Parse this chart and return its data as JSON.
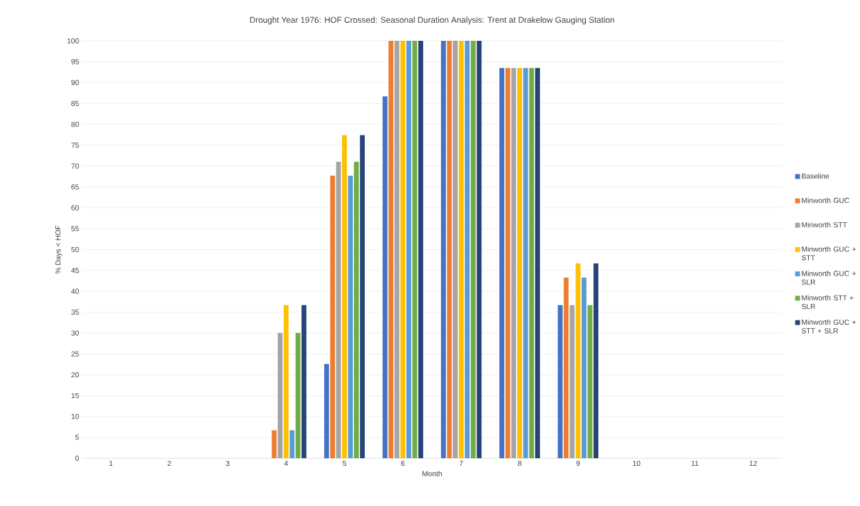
{
  "chart_data": {
    "type": "bar",
    "title": "Drought Year 1976: HOF Crossed: Seasonal Duration Analysis: Trent at Drakelow Gauging Station",
    "xlabel": "Month",
    "ylabel": "% Days < HOF",
    "categories": [
      "1",
      "2",
      "3",
      "4",
      "5",
      "6",
      "7",
      "8",
      "9",
      "10",
      "11",
      "12"
    ],
    "series": [
      {
        "name": "Baseline",
        "color": "#4472c4",
        "values": [
          0,
          0,
          0,
          0,
          22.6,
          86.7,
          100,
          93.5,
          36.7,
          0,
          0,
          0
        ]
      },
      {
        "name": "Minworth GUC",
        "color": "#ed7d31",
        "values": [
          0,
          0,
          0,
          6.7,
          67.7,
          100,
          100,
          93.5,
          43.3,
          0,
          0,
          0
        ]
      },
      {
        "name": "Minworth STT",
        "color": "#a5a5a5",
        "values": [
          0,
          0,
          0,
          30,
          71,
          100,
          100,
          93.5,
          36.7,
          0,
          0,
          0
        ]
      },
      {
        "name": "Minworth GUC + STT",
        "color": "#ffc000",
        "values": [
          0,
          0,
          0,
          36.7,
          77.4,
          100,
          100,
          93.5,
          46.7,
          0,
          0,
          0
        ]
      },
      {
        "name": "Minworth GUC + SLR",
        "color": "#5b9bd5",
        "values": [
          0,
          0,
          0,
          6.7,
          67.7,
          100,
          100,
          93.5,
          43.3,
          0,
          0,
          0
        ]
      },
      {
        "name": "Minworth STT + SLR",
        "color": "#70ad47",
        "values": [
          0,
          0,
          0,
          30,
          71,
          100,
          100,
          93.5,
          36.7,
          0,
          0,
          0
        ]
      },
      {
        "name": "Minworth GUC + STT + SLR",
        "color": "#264478",
        "values": [
          0,
          0,
          0,
          36.7,
          77.4,
          100,
          100,
          93.5,
          46.7,
          0,
          0,
          0
        ]
      }
    ],
    "ylim": [
      0,
      100
    ],
    "yticks": [
      0,
      5,
      10,
      15,
      20,
      25,
      30,
      35,
      40,
      45,
      50,
      55,
      60,
      65,
      70,
      75,
      80,
      85,
      90,
      95,
      100
    ],
    "grid": "y",
    "legend": "right"
  }
}
